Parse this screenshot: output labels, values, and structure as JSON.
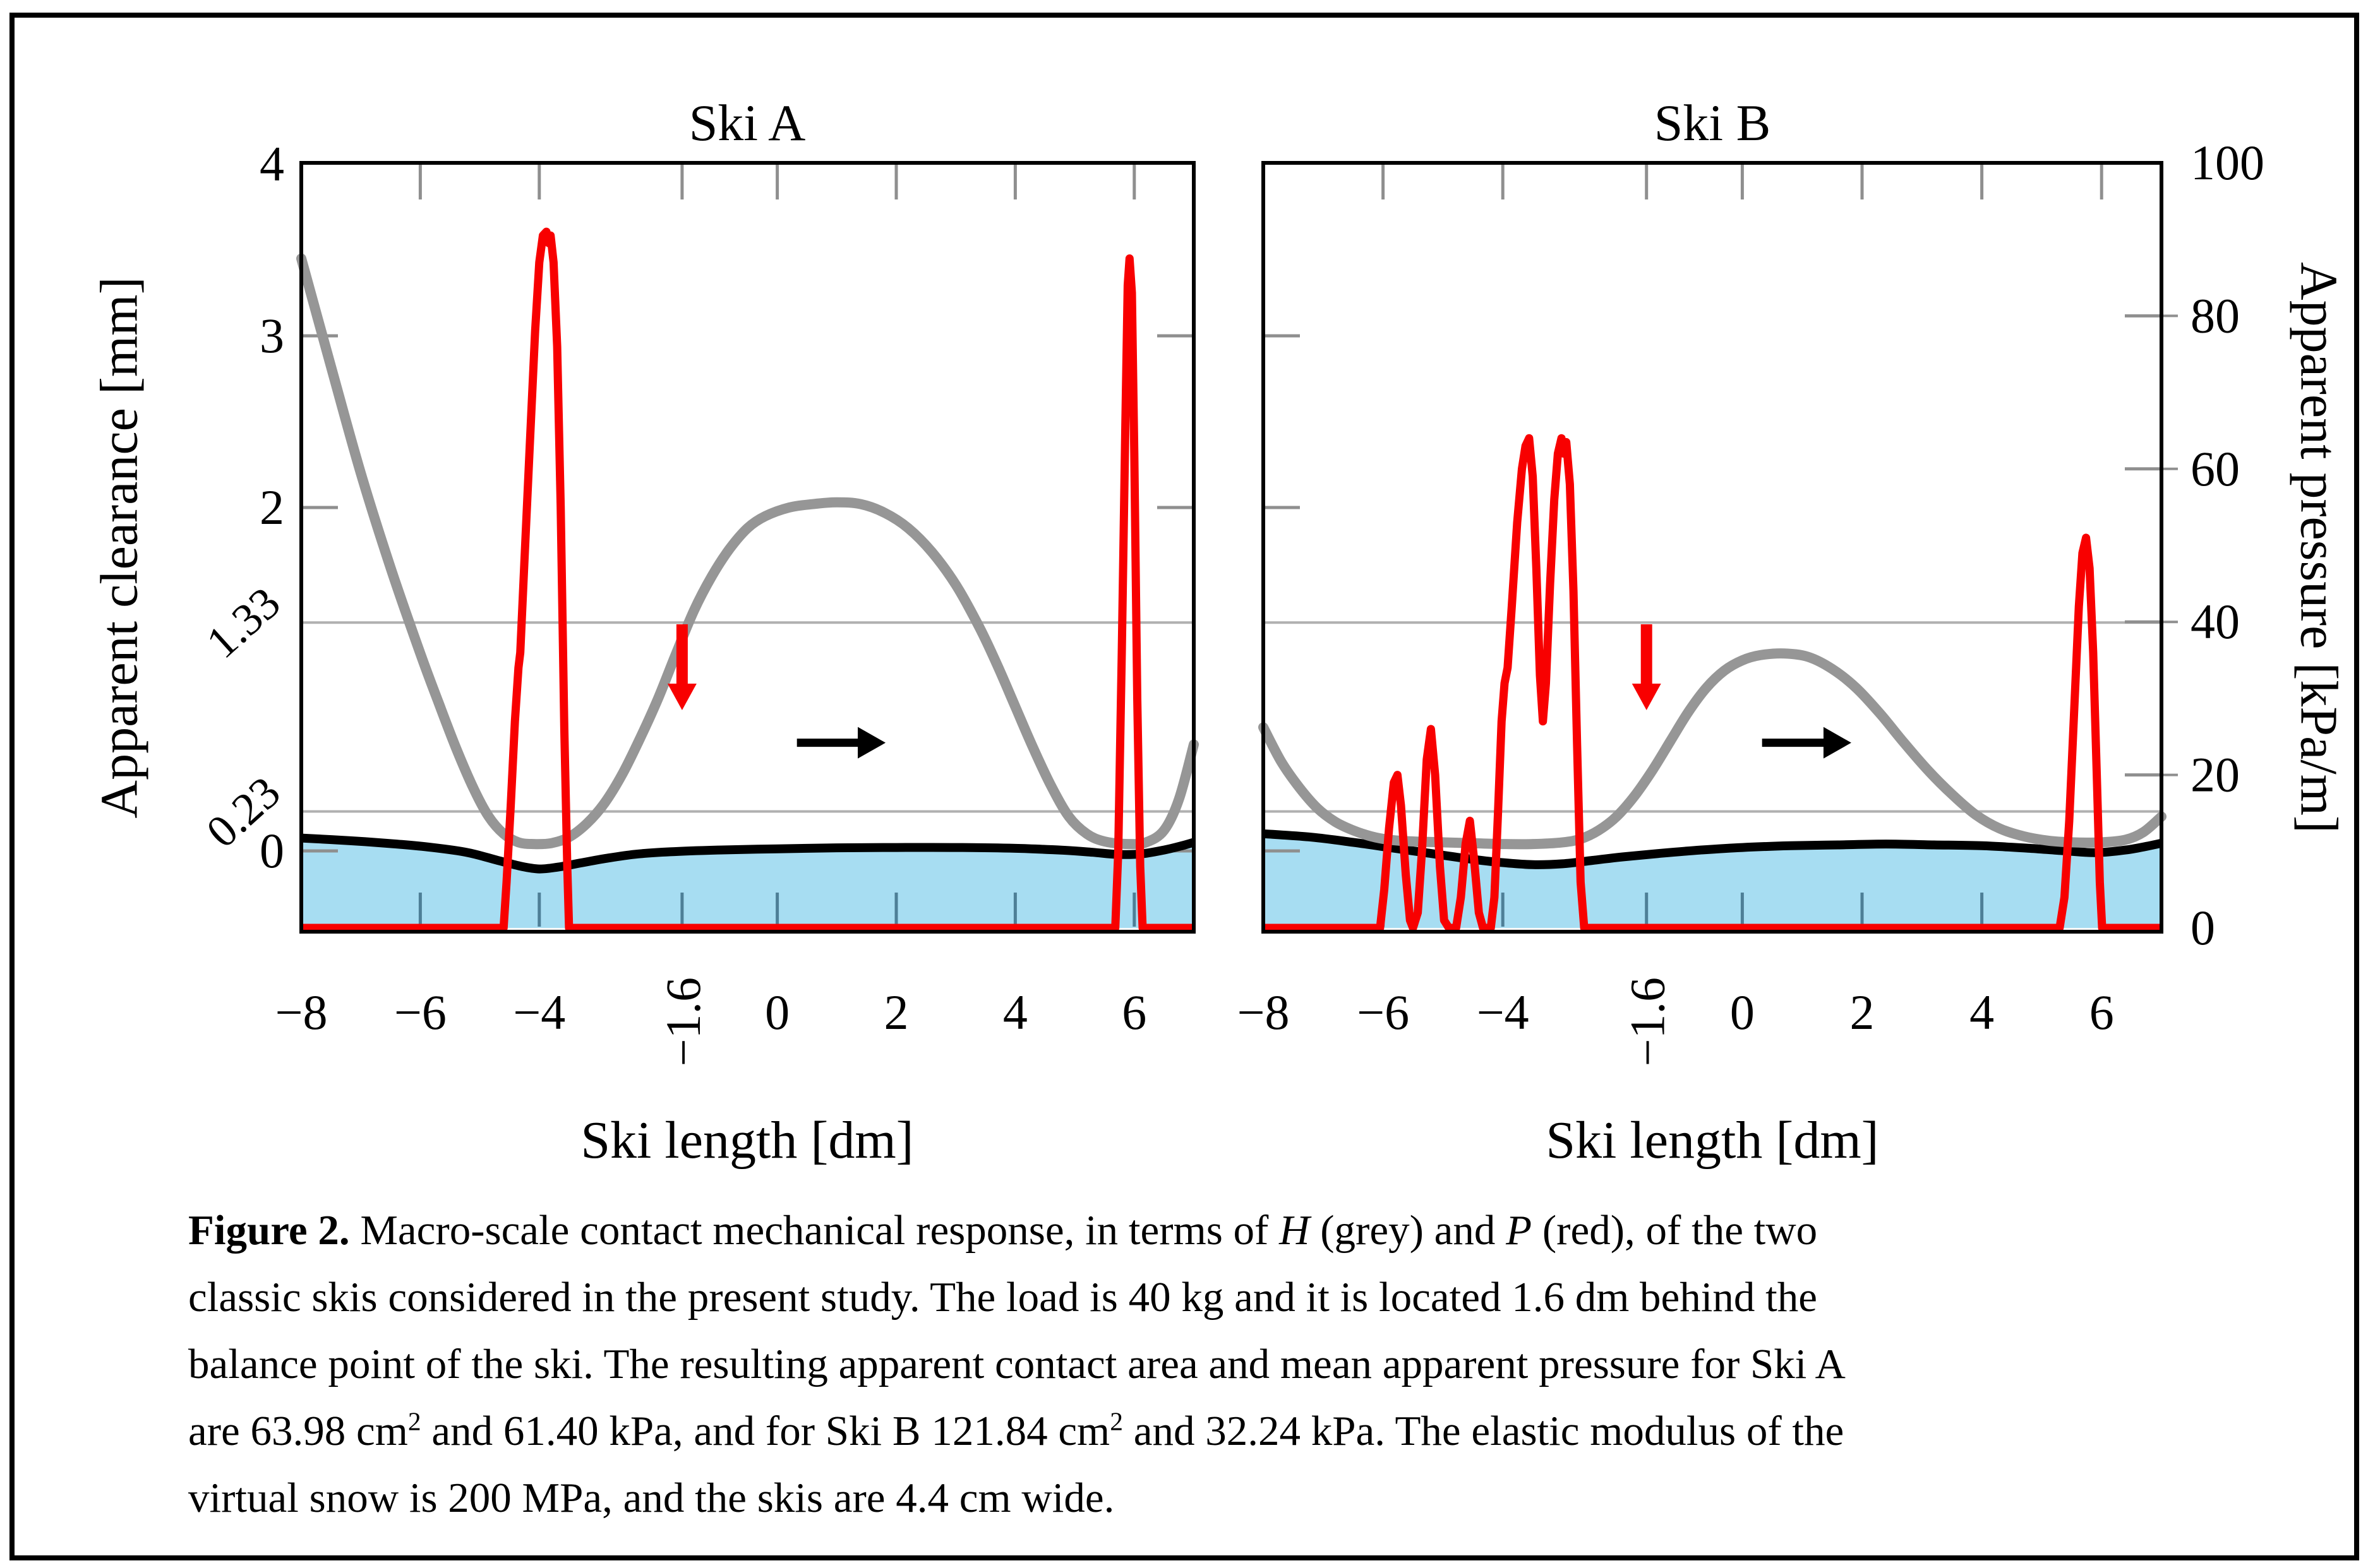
{
  "figure": {
    "panel_titles": {
      "a": "Ski A",
      "b": "Ski B"
    }
  },
  "axes": {
    "x": {
      "label": "Ski length [dm]",
      "range_dm": [
        -8,
        7
      ],
      "ticks": [
        -8,
        -6,
        -4,
        0,
        2,
        4,
        6
      ],
      "tick_labels": [
        "−8",
        "−6",
        "−4",
        "0",
        "2",
        "4",
        "6"
      ],
      "rotated_tick": -1.6,
      "rotated_tick_label": "−1.6"
    },
    "y_left": {
      "label": "Apparent clearance [mm]",
      "ticks": [
        4,
        3,
        2,
        0
      ],
      "tick_labels": [
        "4",
        "3",
        "2",
        "0"
      ],
      "rotated_ticks": [
        1.33,
        0.23
      ],
      "rotated_tick_labels": [
        "1.33",
        "0.23"
      ],
      "range_mm": [
        -0.47,
        4
      ]
    },
    "y_right": {
      "label": "Apparent pressure [kPa/m]",
      "ticks": [
        100,
        80,
        60,
        40,
        20,
        0
      ],
      "tick_labels": [
        "100",
        "80",
        "60",
        "40",
        "20",
        "0"
      ],
      "range": [
        0,
        100
      ]
    }
  },
  "chart_data": {
    "type": "line",
    "gridlines_clearance_mm": [
      1.33,
      0.23
    ],
    "panels": [
      {
        "id": "ski_a",
        "title": "Ski A",
        "H_clearance_mm": [
          [
            -8,
            3.45
          ],
          [
            -7.5,
            2.82
          ],
          [
            -7,
            2.2
          ],
          [
            -6.5,
            1.65
          ],
          [
            -6,
            1.15
          ],
          [
            -5.7,
            0.87
          ],
          [
            -5.4,
            0.6
          ],
          [
            -5.1,
            0.36
          ],
          [
            -4.85,
            0.2
          ],
          [
            -4.6,
            0.1
          ],
          [
            -4.35,
            0.05
          ],
          [
            -4.1,
            0.04
          ],
          [
            -3.8,
            0.045
          ],
          [
            -3.5,
            0.08
          ],
          [
            -3.2,
            0.16
          ],
          [
            -2.9,
            0.28
          ],
          [
            -2.6,
            0.45
          ],
          [
            -2.3,
            0.66
          ],
          [
            -2,
            0.89
          ],
          [
            -1.7,
            1.15
          ],
          [
            -1.4,
            1.4
          ],
          [
            -1.1,
            1.6
          ],
          [
            -0.8,
            1.76
          ],
          [
            -0.5,
            1.88
          ],
          [
            -0.2,
            1.95
          ],
          [
            0.2,
            2
          ],
          [
            0.6,
            2.02
          ],
          [
            1,
            2.03
          ],
          [
            1.4,
            2.02
          ],
          [
            1.8,
            1.97
          ],
          [
            2.2,
            1.88
          ],
          [
            2.6,
            1.74
          ],
          [
            3,
            1.55
          ],
          [
            3.4,
            1.3
          ],
          [
            3.7,
            1.08
          ],
          [
            4,
            0.84
          ],
          [
            4.3,
            0.6
          ],
          [
            4.6,
            0.38
          ],
          [
            4.9,
            0.2
          ],
          [
            5.2,
            0.1
          ],
          [
            5.5,
            0.055
          ],
          [
            5.9,
            0.04
          ],
          [
            6.2,
            0.05
          ],
          [
            6.5,
            0.12
          ],
          [
            6.75,
            0.3
          ],
          [
            7,
            0.62
          ]
        ],
        "P_pressure_kpa_m": [
          [
            -8,
            0
          ],
          [
            -4.6,
            0
          ],
          [
            -4.55,
            6
          ],
          [
            -4.48,
            16
          ],
          [
            -4.41,
            27
          ],
          [
            -4.35,
            34
          ],
          [
            -4.32,
            36
          ],
          [
            -4.25,
            48
          ],
          [
            -4.16,
            63
          ],
          [
            -4.07,
            78
          ],
          [
            -4,
            87
          ],
          [
            -3.94,
            90.5
          ],
          [
            -3.88,
            91
          ],
          [
            -3.84,
            89.5
          ],
          [
            -3.81,
            90.5
          ],
          [
            -3.76,
            87
          ],
          [
            -3.7,
            76
          ],
          [
            -3.64,
            55
          ],
          [
            -3.58,
            26
          ],
          [
            -3.53,
            8
          ],
          [
            -3.5,
            0
          ],
          [
            5.68,
            0
          ],
          [
            5.73,
            10
          ],
          [
            5.79,
            36
          ],
          [
            5.85,
            66
          ],
          [
            5.89,
            84
          ],
          [
            5.92,
            87.5
          ],
          [
            5.96,
            83
          ],
          [
            6,
            62
          ],
          [
            6.05,
            30
          ],
          [
            6.1,
            8
          ],
          [
            6.14,
            0
          ],
          [
            7,
            0
          ]
        ],
        "snow_surface_mm": [
          [
            -8,
            0.075
          ],
          [
            -7.2,
            0.06
          ],
          [
            -6.4,
            0.04
          ],
          [
            -5.8,
            0.02
          ],
          [
            -5.2,
            -0.01
          ],
          [
            -4.7,
            -0.055
          ],
          [
            -4.3,
            -0.09
          ],
          [
            -4,
            -0.105
          ],
          [
            -3.7,
            -0.095
          ],
          [
            -3.3,
            -0.07
          ],
          [
            -2.9,
            -0.045
          ],
          [
            -2.4,
            -0.02
          ],
          [
            -1.8,
            -0.005
          ],
          [
            -1,
            0.005
          ],
          [
            0,
            0.012
          ],
          [
            1,
            0.018
          ],
          [
            2,
            0.02
          ],
          [
            3,
            0.02
          ],
          [
            4,
            0.015
          ],
          [
            4.8,
            0.004
          ],
          [
            5.3,
            -0.008
          ],
          [
            5.7,
            -0.02
          ],
          [
            6.1,
            -0.018
          ],
          [
            6.5,
            0.005
          ],
          [
            6.8,
            0.03
          ],
          [
            7,
            0.05
          ]
        ]
      },
      {
        "id": "ski_b",
        "title": "Ski B",
        "H_clearance_mm": [
          [
            -8,
            0.72
          ],
          [
            -7.7,
            0.52
          ],
          [
            -7.4,
            0.37
          ],
          [
            -7.1,
            0.25
          ],
          [
            -6.8,
            0.17
          ],
          [
            -6.5,
            0.12
          ],
          [
            -6.2,
            0.085
          ],
          [
            -5.9,
            0.065
          ],
          [
            -5.5,
            0.055
          ],
          [
            -5,
            0.05
          ],
          [
            -4.5,
            0.045
          ],
          [
            -4,
            0.04
          ],
          [
            -3.5,
            0.04
          ],
          [
            -3,
            0.05
          ],
          [
            -2.7,
            0.07
          ],
          [
            -2.4,
            0.12
          ],
          [
            -2.1,
            0.2
          ],
          [
            -1.8,
            0.32
          ],
          [
            -1.5,
            0.47
          ],
          [
            -1.2,
            0.64
          ],
          [
            -0.9,
            0.81
          ],
          [
            -0.6,
            0.95
          ],
          [
            -0.3,
            1.05
          ],
          [
            0,
            1.11
          ],
          [
            0.3,
            1.14
          ],
          [
            0.7,
            1.15
          ],
          [
            1.1,
            1.13
          ],
          [
            1.5,
            1.06
          ],
          [
            1.9,
            0.95
          ],
          [
            2.3,
            0.8
          ],
          [
            2.7,
            0.63
          ],
          [
            3.1,
            0.47
          ],
          [
            3.5,
            0.33
          ],
          [
            3.9,
            0.21
          ],
          [
            4.3,
            0.13
          ],
          [
            4.7,
            0.085
          ],
          [
            5.1,
            0.06
          ],
          [
            5.5,
            0.05
          ],
          [
            6,
            0.05
          ],
          [
            6.4,
            0.065
          ],
          [
            6.7,
            0.11
          ],
          [
            7,
            0.2
          ]
        ],
        "P_pressure_kpa_m": [
          [
            -8,
            0
          ],
          [
            -6.05,
            0
          ],
          [
            -5.98,
            5
          ],
          [
            -5.9,
            13
          ],
          [
            -5.82,
            19
          ],
          [
            -5.76,
            20
          ],
          [
            -5.7,
            16
          ],
          [
            -5.62,
            7
          ],
          [
            -5.55,
            1
          ],
          [
            -5.5,
            0
          ],
          [
            -5.42,
            2
          ],
          [
            -5.35,
            10
          ],
          [
            -5.27,
            22
          ],
          [
            -5.2,
            26
          ],
          [
            -5.13,
            20
          ],
          [
            -5.05,
            8
          ],
          [
            -4.98,
            1
          ],
          [
            -4.9,
            0
          ],
          [
            -4.78,
            0
          ],
          [
            -4.7,
            4
          ],
          [
            -4.62,
            11
          ],
          [
            -4.55,
            14
          ],
          [
            -4.48,
            9
          ],
          [
            -4.4,
            2
          ],
          [
            -4.33,
            0
          ],
          [
            -4.2,
            0
          ],
          [
            -4.14,
            4
          ],
          [
            -4.08,
            15
          ],
          [
            -4.02,
            27
          ],
          [
            -3.97,
            32
          ],
          [
            -3.92,
            34
          ],
          [
            -3.85,
            42
          ],
          [
            -3.76,
            53
          ],
          [
            -3.68,
            60
          ],
          [
            -3.62,
            63
          ],
          [
            -3.56,
            64
          ],
          [
            -3.5,
            59
          ],
          [
            -3.44,
            47
          ],
          [
            -3.38,
            33
          ],
          [
            -3.33,
            27
          ],
          [
            -3.28,
            32
          ],
          [
            -3.21,
            45
          ],
          [
            -3.14,
            56
          ],
          [
            -3.08,
            62
          ],
          [
            -3.02,
            64
          ],
          [
            -2.98,
            62
          ],
          [
            -2.94,
            63.5
          ],
          [
            -2.88,
            58
          ],
          [
            -2.82,
            44
          ],
          [
            -2.76,
            24
          ],
          [
            -2.7,
            6
          ],
          [
            -2.64,
            0
          ],
          [
            5.3,
            0
          ],
          [
            5.38,
            4
          ],
          [
            5.46,
            14
          ],
          [
            5.54,
            28
          ],
          [
            5.62,
            42
          ],
          [
            5.68,
            49
          ],
          [
            5.74,
            51
          ],
          [
            5.8,
            47
          ],
          [
            5.86,
            36
          ],
          [
            5.92,
            20
          ],
          [
            5.97,
            6
          ],
          [
            6.01,
            0
          ],
          [
            7,
            0
          ]
        ],
        "snow_surface_mm": [
          [
            -8,
            0.1
          ],
          [
            -7.2,
            0.08
          ],
          [
            -6.5,
            0.05
          ],
          [
            -5.9,
            0.02
          ],
          [
            -5.3,
            -0.01
          ],
          [
            -4.7,
            -0.04
          ],
          [
            -4.1,
            -0.065
          ],
          [
            -3.5,
            -0.08
          ],
          [
            -3,
            -0.075
          ],
          [
            -2.5,
            -0.055
          ],
          [
            -2,
            -0.035
          ],
          [
            -1.4,
            -0.015
          ],
          [
            -0.7,
            0.005
          ],
          [
            0,
            0.02
          ],
          [
            0.8,
            0.03
          ],
          [
            1.6,
            0.035
          ],
          [
            2.4,
            0.04
          ],
          [
            3.2,
            0.035
          ],
          [
            4,
            0.03
          ],
          [
            4.8,
            0.015
          ],
          [
            5.4,
            0
          ],
          [
            5.9,
            -0.01
          ],
          [
            6.4,
            0.005
          ],
          [
            6.8,
            0.03
          ],
          [
            7,
            0.045
          ]
        ]
      }
    ],
    "annotations": {
      "red_down_arrow": {
        "x_dm": -1.6,
        "y_from_mm": 1.32,
        "y_to_mm": 0.82
      },
      "black_right_arrow": {
        "x_from_dm": 0.33,
        "x_to_dm": 1.82,
        "y_mm": 0.63
      }
    },
    "legend_note": "H grey curve, P red curve, blue region is virtual snow"
  },
  "caption": {
    "lines": [
      [
        {
          "t": "Figure 2.",
          "s": "b"
        },
        {
          "t": " Macro-scale contact mechanical response, in terms of "
        },
        {
          "t": "H",
          "s": "i"
        },
        {
          "t": " (grey) and "
        },
        {
          "t": "P",
          "s": "i"
        },
        {
          "t": " (red), of the two"
        }
      ],
      [
        {
          "t": "classic skis considered in the present study. The load is 40 kg and it is located 1.6 dm behind the"
        }
      ],
      [
        {
          "t": "balance point of the ski. The resulting apparent contact area and mean apparent pressure for Ski A"
        }
      ],
      [
        {
          "t": "are 63.98 cm"
        },
        {
          "t": "2",
          "s": "sup"
        },
        {
          "t": " and 61.40 kPa, and for Ski B 121.84 cm"
        },
        {
          "t": "2",
          "s": "sup"
        },
        {
          "t": " and 32.24 kPa. The elastic modulus of the"
        }
      ],
      [
        {
          "t": "virtual snow is 200 MPa, and the skis are 4.4 cm wide."
        }
      ]
    ]
  },
  "colors": {
    "H_curve_grey": "#969696",
    "P_curve_red": "#F80000",
    "snow_fill_blue": "#A7DDF2",
    "snow_surface_black": "#000000",
    "gridline_grey": "#B0B0B0",
    "tick_grey": "#8F8F8F",
    "tick_in_snow": "#4E7F97",
    "frame_black": "#000000"
  }
}
